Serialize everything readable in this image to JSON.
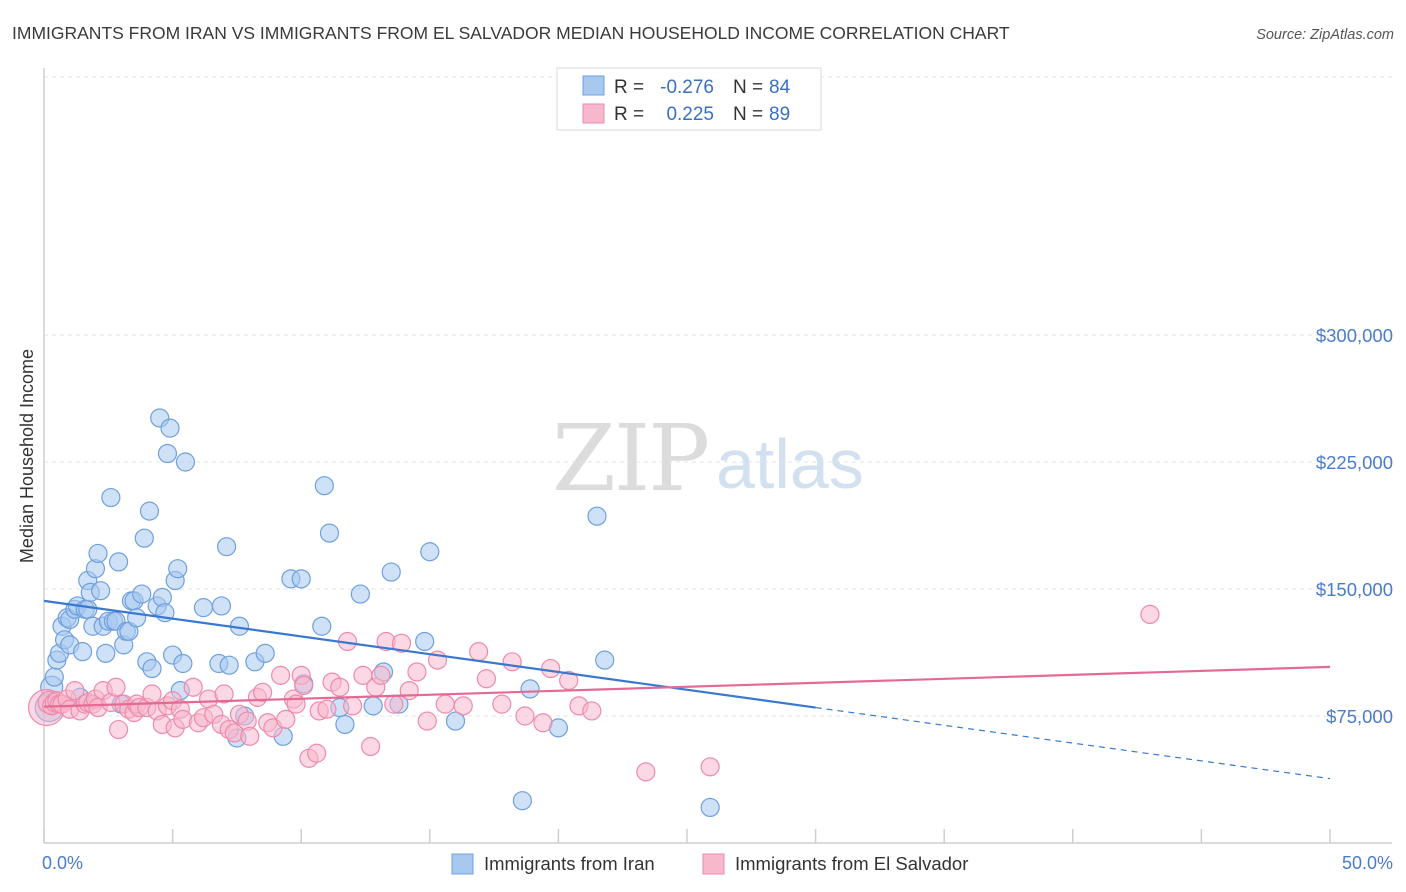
{
  "title": "IMMIGRANTS FROM IRAN VS IMMIGRANTS FROM EL SALVADOR MEDIAN HOUSEHOLD INCOME CORRELATION CHART",
  "source": "Source: ZipAtlas.com",
  "watermark": {
    "zip": "ZIP",
    "atlas": "atlas"
  },
  "legend_box": {
    "rows": [
      {
        "r_label": "R =",
        "r_value": "-0.276",
        "n_label": "N =",
        "n_value": "84",
        "color": "#a8c8f0"
      },
      {
        "r_label": "R =",
        "r_value": "0.225",
        "n_label": "N =",
        "n_value": "89",
        "color": "#f7b8cc"
      }
    ]
  },
  "bottom_legend": [
    "Immigrants from Iran",
    "Immigrants from El Salvador"
  ],
  "chart_data": {
    "type": "scatter",
    "title": "IMMIGRANTS FROM IRAN VS IMMIGRANTS FROM EL SALVADOR MEDIAN HOUSEHOLD INCOME CORRELATION CHART",
    "xlabel": "",
    "ylabel": "Median Household Income",
    "xlim": [
      0,
      50
    ],
    "ylim": [
      0,
      315000
    ],
    "x_tick_labels": [
      "0.0%",
      "50.0%"
    ],
    "y_ticks": [
      75000,
      150000,
      225000,
      300000
    ],
    "y_tick_labels": [
      "$75,000",
      "$150,000",
      "$225,000",
      "$300,000"
    ],
    "grid": true,
    "legend_position": "top-center",
    "series": [
      {
        "name": "Immigrants from Iran",
        "color": "#6fa0dc",
        "fill": "#a8c8f0",
        "trend": {
          "x0": 0,
          "y0": 143000,
          "x1": 30,
          "y1": 80000,
          "dash_to_x": 50,
          "dash_to_y": 38000,
          "color": "#3a78d0"
        },
        "points": [
          [
            0.2,
            80000,
            14
          ],
          [
            0.3,
            92000,
            11
          ],
          [
            0.4,
            98000,
            9
          ],
          [
            0.5,
            108000,
            9
          ],
          [
            0.6,
            112000,
            9
          ],
          [
            0.7,
            128000,
            9
          ],
          [
            0.8,
            120000,
            9
          ],
          [
            0.9,
            133000,
            9
          ],
          [
            1.0,
            117000,
            9
          ],
          [
            1.0,
            132000,
            9
          ],
          [
            1.2,
            138000,
            9
          ],
          [
            1.3,
            140000,
            9
          ],
          [
            1.4,
            86000,
            9
          ],
          [
            1.5,
            113000,
            9
          ],
          [
            1.6,
            138000,
            9
          ],
          [
            1.7,
            138000,
            9
          ],
          [
            1.7,
            155000,
            9
          ],
          [
            1.8,
            148000,
            9
          ],
          [
            1.9,
            128000,
            9
          ],
          [
            2.0,
            162000,
            9
          ],
          [
            2.1,
            171000,
            9
          ],
          [
            2.2,
            149000,
            9
          ],
          [
            2.3,
            128000,
            9
          ],
          [
            2.4,
            112000,
            9
          ],
          [
            2.5,
            131000,
            9
          ],
          [
            2.6,
            204000,
            9
          ],
          [
            2.7,
            131000,
            9
          ],
          [
            2.8,
            131000,
            9
          ],
          [
            2.9,
            166000,
            9
          ],
          [
            3.0,
            82000,
            9
          ],
          [
            3.1,
            117000,
            9
          ],
          [
            3.2,
            125000,
            9
          ],
          [
            3.3,
            125000,
            9
          ],
          [
            3.4,
            143000,
            9
          ],
          [
            3.5,
            143000,
            9
          ],
          [
            3.6,
            133000,
            9
          ],
          [
            3.8,
            147000,
            9
          ],
          [
            3.9,
            180000,
            9
          ],
          [
            4.0,
            107000,
            9
          ],
          [
            4.1,
            196000,
            9
          ],
          [
            4.2,
            103000,
            9
          ],
          [
            4.4,
            140000,
            9
          ],
          [
            4.5,
            251000,
            9
          ],
          [
            4.6,
            145000,
            9
          ],
          [
            4.7,
            136000,
            9
          ],
          [
            4.8,
            230000,
            9
          ],
          [
            4.9,
            245000,
            9
          ],
          [
            5.0,
            111000,
            9
          ],
          [
            5.1,
            155000,
            9
          ],
          [
            5.2,
            162000,
            9
          ],
          [
            5.3,
            90000,
            9
          ],
          [
            5.4,
            106000,
            9
          ],
          [
            5.5,
            225000,
            9
          ],
          [
            6.2,
            139000,
            9
          ],
          [
            6.8,
            106000,
            9
          ],
          [
            6.9,
            140000,
            9
          ],
          [
            7.1,
            175000,
            9
          ],
          [
            7.2,
            105000,
            9
          ],
          [
            7.5,
            62000,
            9
          ],
          [
            7.6,
            128000,
            9
          ],
          [
            7.8,
            75000,
            9
          ],
          [
            8.2,
            107000,
            9
          ],
          [
            8.6,
            112000,
            9
          ],
          [
            9.3,
            63000,
            9
          ],
          [
            9.6,
            156000,
            9
          ],
          [
            10.0,
            156000,
            9
          ],
          [
            10.1,
            94000,
            9
          ],
          [
            10.8,
            128000,
            9
          ],
          [
            10.9,
            211000,
            9
          ],
          [
            11.1,
            183000,
            9
          ],
          [
            11.5,
            80000,
            9
          ],
          [
            11.7,
            70000,
            9
          ],
          [
            12.3,
            147000,
            9
          ],
          [
            12.8,
            81000,
            9
          ],
          [
            13.2,
            101000,
            9
          ],
          [
            13.5,
            160000,
            9
          ],
          [
            13.8,
            82000,
            9
          ],
          [
            14.8,
            119000,
            9
          ],
          [
            15.0,
            172000,
            9
          ],
          [
            16.0,
            72000,
            9
          ],
          [
            18.6,
            25000,
            9
          ],
          [
            18.9,
            91000,
            9
          ],
          [
            20.0,
            68000,
            9
          ],
          [
            21.5,
            193000,
            9
          ],
          [
            21.8,
            108000,
            9
          ],
          [
            25.9,
            21000,
            9
          ]
        ]
      },
      {
        "name": "Immigrants from El Salvador",
        "color": "#ee8aab",
        "fill": "#f7b8cc",
        "trend": {
          "x0": 0,
          "y0": 80500,
          "x1": 50,
          "y1": 104000,
          "color": "#e46a94"
        },
        "points": [
          [
            0.1,
            80000,
            18
          ],
          [
            0.2,
            83000,
            11
          ],
          [
            0.3,
            81000,
            9
          ],
          [
            0.4,
            83000,
            9
          ],
          [
            0.5,
            84000,
            9
          ],
          [
            0.6,
            82000,
            9
          ],
          [
            0.7,
            82000,
            9
          ],
          [
            0.9,
            85000,
            9
          ],
          [
            1.0,
            79000,
            9
          ],
          [
            1.2,
            90000,
            9
          ],
          [
            1.4,
            78000,
            9
          ],
          [
            1.6,
            82000,
            9
          ],
          [
            1.7,
            83000,
            9
          ],
          [
            1.9,
            82000,
            9
          ],
          [
            2.0,
            85000,
            9
          ],
          [
            2.1,
            80000,
            9
          ],
          [
            2.3,
            90000,
            9
          ],
          [
            2.6,
            83000,
            9
          ],
          [
            2.8,
            92000,
            9
          ],
          [
            2.9,
            67000,
            9
          ],
          [
            3.1,
            82000,
            9
          ],
          [
            3.3,
            79000,
            9
          ],
          [
            3.5,
            77000,
            9
          ],
          [
            3.6,
            82000,
            9
          ],
          [
            3.7,
            80000,
            9
          ],
          [
            4.0,
            80000,
            9
          ],
          [
            4.2,
            88000,
            9
          ],
          [
            4.4,
            78000,
            9
          ],
          [
            4.6,
            70000,
            9
          ],
          [
            4.8,
            81000,
            9
          ],
          [
            5.0,
            84000,
            9
          ],
          [
            5.1,
            68000,
            9
          ],
          [
            5.3,
            79000,
            9
          ],
          [
            5.4,
            73000,
            9
          ],
          [
            5.8,
            92000,
            9
          ],
          [
            6.0,
            71000,
            9
          ],
          [
            6.2,
            74000,
            9
          ],
          [
            6.4,
            85000,
            9
          ],
          [
            6.6,
            76000,
            9
          ],
          [
            6.9,
            70000,
            9
          ],
          [
            7.0,
            88000,
            9
          ],
          [
            7.2,
            67000,
            9
          ],
          [
            7.4,
            65000,
            9
          ],
          [
            7.6,
            76000,
            9
          ],
          [
            7.9,
            72000,
            9
          ],
          [
            8.0,
            63000,
            9
          ],
          [
            8.3,
            86000,
            9
          ],
          [
            8.5,
            89000,
            9
          ],
          [
            8.7,
            71000,
            9
          ],
          [
            8.9,
            68000,
            9
          ],
          [
            9.2,
            99000,
            9
          ],
          [
            9.4,
            73000,
            9
          ],
          [
            9.7,
            85000,
            9
          ],
          [
            9.8,
            82000,
            9
          ],
          [
            10.0,
            99000,
            9
          ],
          [
            10.1,
            93000,
            9
          ],
          [
            10.3,
            50000,
            9
          ],
          [
            10.6,
            53000,
            9
          ],
          [
            10.7,
            78000,
            9
          ],
          [
            11.0,
            79000,
            9
          ],
          [
            11.2,
            95000,
            9
          ],
          [
            11.5,
            92000,
            9
          ],
          [
            11.8,
            119000,
            9
          ],
          [
            12.0,
            81000,
            9
          ],
          [
            12.4,
            99000,
            9
          ],
          [
            12.7,
            57000,
            9
          ],
          [
            12.9,
            92000,
            9
          ],
          [
            13.1,
            99000,
            9
          ],
          [
            13.3,
            119000,
            9
          ],
          [
            13.6,
            82000,
            9
          ],
          [
            13.9,
            118000,
            9
          ],
          [
            14.2,
            90000,
            9
          ],
          [
            14.5,
            101000,
            9
          ],
          [
            14.9,
            72000,
            9
          ],
          [
            15.3,
            108000,
            9
          ],
          [
            15.6,
            82000,
            9
          ],
          [
            16.3,
            81000,
            9
          ],
          [
            16.9,
            113000,
            9
          ],
          [
            17.2,
            97000,
            9
          ],
          [
            17.8,
            82000,
            9
          ],
          [
            18.2,
            107000,
            9
          ],
          [
            18.7,
            75000,
            9
          ],
          [
            19.4,
            71000,
            9
          ],
          [
            19.7,
            103000,
            9
          ],
          [
            20.4,
            96000,
            9
          ],
          [
            20.8,
            81000,
            9
          ],
          [
            21.3,
            78000,
            9
          ],
          [
            23.4,
            42000,
            9
          ],
          [
            25.9,
            45000,
            9
          ],
          [
            43.0,
            135000,
            9
          ]
        ]
      }
    ]
  }
}
